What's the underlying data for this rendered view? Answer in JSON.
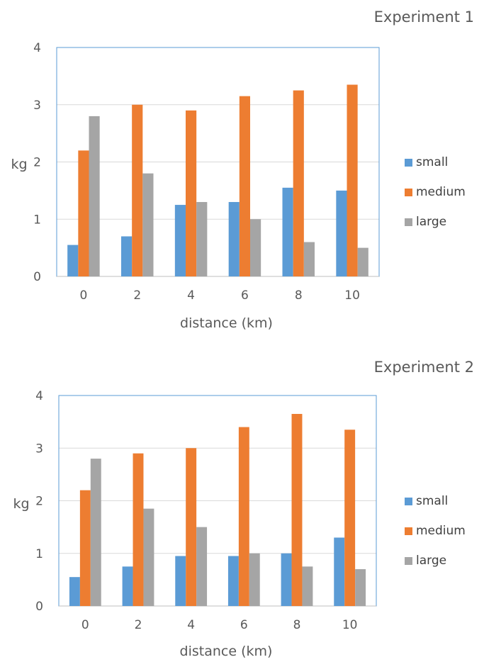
{
  "chart_data": [
    {
      "type": "bar",
      "title": "Experiment 1",
      "xlabel": "distance (km)",
      "ylabel": "kg",
      "ylim": [
        0,
        4
      ],
      "yticks": [
        "0",
        "1",
        "2",
        "3",
        "4"
      ],
      "categories": [
        "0",
        "2",
        "4",
        "6",
        "8",
        "10"
      ],
      "legend_position": "right",
      "series": [
        {
          "name": "small",
          "color": "#5B9BD5",
          "values": [
            0.55,
            0.7,
            1.25,
            1.3,
            1.55,
            1.5
          ]
        },
        {
          "name": "medium",
          "color": "#ED7D31",
          "values": [
            2.2,
            3.0,
            2.9,
            3.15,
            3.25,
            3.35
          ]
        },
        {
          "name": "large",
          "color": "#A5A5A5",
          "values": [
            2.8,
            1.8,
            1.3,
            1.0,
            0.6,
            0.5
          ]
        }
      ]
    },
    {
      "type": "bar",
      "title": "Experiment 2",
      "xlabel": "distance (km)",
      "ylabel": "kg",
      "ylim": [
        0,
        4
      ],
      "yticks": [
        "0",
        "1",
        "2",
        "3",
        "4"
      ],
      "categories": [
        "0",
        "2",
        "4",
        "6",
        "8",
        "10"
      ],
      "legend_position": "right",
      "series": [
        {
          "name": "small",
          "color": "#5B9BD5",
          "values": [
            0.55,
            0.75,
            0.95,
            0.95,
            1.0,
            1.3
          ]
        },
        {
          "name": "medium",
          "color": "#ED7D31",
          "values": [
            2.2,
            2.9,
            3.0,
            3.4,
            3.65,
            3.35
          ]
        },
        {
          "name": "large",
          "color": "#A5A5A5",
          "values": [
            2.8,
            1.85,
            1.5,
            1.0,
            0.75,
            0.7
          ]
        }
      ]
    }
  ]
}
